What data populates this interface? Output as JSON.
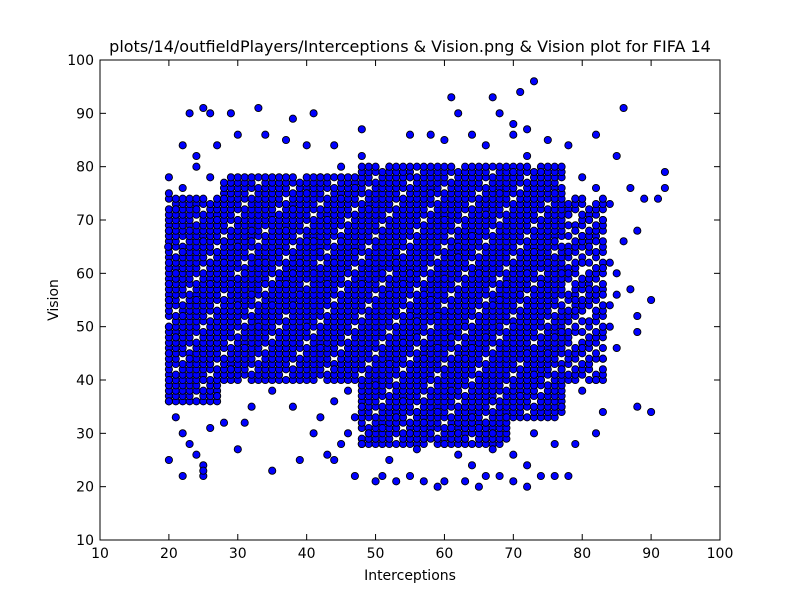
{
  "chart_data": {
    "type": "scatter",
    "title": "plots/14/outfieldPlayers/Interceptions & Vision.png & Vision plot for FIFA 14",
    "xlabel": "Interceptions",
    "ylabel": "Vision",
    "xlim": [
      10,
      100
    ],
    "ylim": [
      10,
      100
    ],
    "xticks": [
      "10",
      "20",
      "30",
      "40",
      "50",
      "60",
      "70",
      "80",
      "90",
      "100"
    ],
    "yticks": [
      "10",
      "20",
      "30",
      "40",
      "50",
      "60",
      "70",
      "80",
      "90",
      "100"
    ],
    "grid": false,
    "legend": "none",
    "marker_color": "#0000ff",
    "marker_edge_color": "#000000",
    "points": [
      [
        20,
        25
      ],
      [
        22,
        22
      ],
      [
        24,
        26
      ],
      [
        25,
        22
      ],
      [
        25,
        24
      ],
      [
        25,
        23
      ],
      [
        30,
        27
      ],
      [
        35,
        23
      ],
      [
        39,
        25
      ],
      [
        41,
        30
      ],
      [
        44,
        25
      ],
      [
        47,
        22
      ],
      [
        50,
        21
      ],
      [
        51,
        22
      ],
      [
        53,
        21
      ],
      [
        55,
        22
      ],
      [
        57,
        21
      ],
      [
        59,
        20
      ],
      [
        60,
        21
      ],
      [
        63,
        21
      ],
      [
        65,
        20
      ],
      [
        66,
        22
      ],
      [
        68,
        22
      ],
      [
        70,
        21
      ],
      [
        72,
        20
      ],
      [
        72,
        24
      ],
      [
        74,
        22
      ],
      [
        76,
        22
      ],
      [
        78,
        22
      ],
      [
        79,
        28
      ],
      [
        82,
        30
      ],
      [
        83,
        34
      ],
      [
        88,
        35
      ],
      [
        90,
        34
      ],
      [
        90,
        55
      ],
      [
        88,
        49
      ],
      [
        87,
        57
      ],
      [
        88,
        52
      ],
      [
        85,
        60
      ],
      [
        86,
        66
      ],
      [
        88,
        68
      ],
      [
        89,
        74
      ],
      [
        91,
        74
      ],
      [
        92,
        76
      ],
      [
        92,
        79
      ],
      [
        87,
        76
      ],
      [
        84,
        73
      ],
      [
        80,
        78
      ],
      [
        86,
        91
      ],
      [
        23,
        90
      ],
      [
        25,
        91
      ],
      [
        26,
        90
      ],
      [
        29,
        90
      ],
      [
        33,
        91
      ],
      [
        38,
        89
      ],
      [
        41,
        90
      ],
      [
        61,
        93
      ],
      [
        62,
        90
      ],
      [
        67,
        93
      ],
      [
        68,
        90
      ],
      [
        71,
        94
      ],
      [
        73,
        96
      ],
      [
        70,
        88
      ],
      [
        48,
        87
      ],
      [
        55,
        86
      ],
      [
        58,
        86
      ],
      [
        60,
        85
      ],
      [
        64,
        86
      ],
      [
        66,
        84
      ],
      [
        70,
        86
      ],
      [
        72,
        87
      ],
      [
        75,
        85
      ],
      [
        78,
        84
      ],
      [
        82,
        86
      ],
      [
        85,
        82
      ],
      [
        30,
        86
      ],
      [
        34,
        86
      ],
      [
        37,
        85
      ],
      [
        40,
        84
      ],
      [
        44,
        84
      ],
      [
        22,
        84
      ],
      [
        24,
        82
      ],
      [
        27,
        84
      ],
      [
        20,
        78
      ],
      [
        20,
        75
      ],
      [
        19.9,
        65
      ],
      [
        20,
        55
      ],
      [
        20,
        45
      ],
      [
        20,
        40
      ],
      [
        20,
        36
      ],
      [
        21,
        33
      ],
      [
        22,
        30
      ],
      [
        23,
        28
      ],
      [
        26,
        31
      ],
      [
        28,
        32
      ],
      [
        31,
        32
      ],
      [
        32,
        35
      ],
      [
        35,
        38
      ],
      [
        38,
        35
      ],
      [
        42,
        33
      ],
      [
        44,
        36
      ],
      [
        46,
        30
      ],
      [
        48,
        28
      ],
      [
        52,
        25
      ],
      [
        56,
        27
      ],
      [
        62,
        26
      ],
      [
        64,
        24
      ],
      [
        67,
        27
      ],
      [
        70,
        26
      ],
      [
        73,
        30
      ],
      [
        76,
        28
      ],
      [
        77,
        35
      ],
      [
        80,
        38
      ],
      [
        82,
        40
      ],
      [
        83,
        44
      ],
      [
        80,
        46
      ],
      [
        84,
        50
      ],
      [
        85,
        56
      ],
      [
        84,
        62
      ],
      [
        83,
        70
      ],
      [
        82,
        76
      ],
      [
        79,
        74
      ],
      [
        81,
        65
      ],
      [
        78,
        60
      ],
      [
        79,
        55
      ],
      [
        76,
        48
      ],
      [
        77,
        42
      ],
      [
        74,
        40
      ],
      [
        72,
        45
      ],
      [
        70,
        50
      ],
      [
        68,
        55
      ],
      [
        65,
        60
      ],
      [
        62,
        65
      ],
      [
        60,
        70
      ],
      [
        58,
        75
      ],
      [
        55,
        78
      ],
      [
        52,
        80
      ],
      [
        48,
        82
      ],
      [
        45,
        80
      ],
      [
        42,
        78
      ],
      [
        40,
        75
      ],
      [
        38,
        72
      ],
      [
        35,
        70
      ],
      [
        32,
        68
      ],
      [
        30,
        65
      ],
      [
        28,
        62
      ],
      [
        26,
        58
      ],
      [
        24,
        55
      ],
      [
        22,
        52
      ],
      [
        21,
        48
      ],
      [
        23,
        44
      ],
      [
        25,
        40
      ],
      [
        27,
        37
      ],
      [
        29,
        42
      ],
      [
        31,
        46
      ],
      [
        33,
        50
      ],
      [
        35,
        54
      ],
      [
        37,
        58
      ],
      [
        39,
        62
      ],
      [
        41,
        66
      ],
      [
        43,
        70
      ],
      [
        45,
        74
      ],
      [
        47,
        76
      ],
      [
        49,
        72
      ],
      [
        51,
        68
      ],
      [
        53,
        64
      ],
      [
        55,
        60
      ],
      [
        57,
        56
      ],
      [
        59,
        52
      ],
      [
        61,
        48
      ],
      [
        63,
        44
      ],
      [
        65,
        40
      ],
      [
        67,
        36
      ],
      [
        69,
        33
      ],
      [
        71,
        37
      ],
      [
        73,
        41
      ],
      [
        75,
        45
      ],
      [
        77,
        49
      ],
      [
        79,
        53
      ],
      [
        81,
        57
      ],
      [
        83,
        61
      ],
      [
        80,
        67
      ],
      [
        78,
        71
      ],
      [
        76,
        75
      ],
      [
        74,
        79
      ],
      [
        72,
        82
      ],
      [
        70,
        79
      ],
      [
        68,
        75
      ],
      [
        66,
        71
      ],
      [
        64,
        67
      ],
      [
        62,
        63
      ],
      [
        60,
        59
      ],
      [
        58,
        55
      ],
      [
        56,
        51
      ],
      [
        54,
        47
      ],
      [
        52,
        43
      ],
      [
        50,
        39
      ],
      [
        48,
        35
      ],
      [
        46,
        38
      ],
      [
        44,
        42
      ],
      [
        42,
        46
      ],
      [
        40,
        50
      ],
      [
        38,
        54
      ],
      [
        36,
        58
      ],
      [
        34,
        62
      ],
      [
        32,
        66
      ],
      [
        30,
        70
      ],
      [
        28,
        74
      ],
      [
        26,
        78
      ],
      [
        24,
        80
      ],
      [
        22,
        76
      ],
      [
        21,
        72
      ],
      [
        20,
        68
      ],
      [
        20,
        62
      ],
      [
        20,
        58
      ],
      [
        20,
        50
      ],
      [
        21,
        60
      ],
      [
        22,
        64
      ],
      [
        23,
        68
      ],
      [
        24,
        72
      ],
      [
        25,
        66
      ],
      [
        26,
        62
      ],
      [
        27,
        70
      ],
      [
        28,
        66
      ],
      [
        29,
        58
      ],
      [
        30,
        54
      ],
      [
        31,
        60
      ],
      [
        32,
        56
      ],
      [
        33,
        62
      ],
      [
        34,
        58
      ],
      [
        36,
        64
      ],
      [
        37,
        68
      ],
      [
        38,
        60
      ],
      [
        39,
        56
      ],
      [
        40,
        66
      ],
      [
        41,
        60
      ],
      [
        42,
        64
      ],
      [
        43,
        58
      ],
      [
        44,
        62
      ],
      [
        45,
        66
      ],
      [
        46,
        60
      ],
      [
        47,
        64
      ],
      [
        48,
        58
      ],
      [
        49,
        62
      ],
      [
        50,
        66
      ],
      [
        51,
        60
      ],
      [
        52,
        56
      ],
      [
        53,
        62
      ],
      [
        54,
        58
      ],
      [
        55,
        52
      ],
      [
        56,
        48
      ],
      [
        57,
        44
      ],
      [
        58,
        40
      ],
      [
        59,
        46
      ],
      [
        60,
        42
      ],
      [
        61,
        38
      ],
      [
        62,
        44
      ],
      [
        63,
        50
      ],
      [
        64,
        46
      ],
      [
        65,
        52
      ],
      [
        66,
        48
      ],
      [
        67,
        54
      ],
      [
        68,
        50
      ],
      [
        69,
        58
      ],
      [
        70,
        62
      ],
      [
        71,
        56
      ],
      [
        72,
        60
      ],
      [
        73,
        64
      ],
      [
        74,
        58
      ],
      [
        75,
        62
      ],
      [
        76,
        66
      ],
      [
        77,
        60
      ],
      [
        78,
        64
      ],
      [
        79,
        68
      ],
      [
        80,
        62
      ],
      [
        81,
        70
      ],
      [
        82,
        66
      ],
      [
        83,
        56
      ],
      [
        84,
        54
      ],
      [
        85,
        46
      ],
      [
        53,
        33
      ],
      [
        55,
        30
      ],
      [
        57,
        32
      ],
      [
        59,
        34
      ],
      [
        61,
        31
      ],
      [
        63,
        29
      ],
      [
        65,
        31
      ],
      [
        67,
        30
      ],
      [
        54,
        36
      ],
      [
        56,
        34
      ],
      [
        58,
        30
      ],
      [
        60,
        28
      ],
      [
        62,
        30
      ],
      [
        64,
        33
      ],
      [
        66,
        32
      ],
      [
        51,
        31
      ],
      [
        49,
        30
      ],
      [
        47,
        33
      ],
      [
        45,
        28
      ],
      [
        43,
        26
      ]
    ]
  }
}
